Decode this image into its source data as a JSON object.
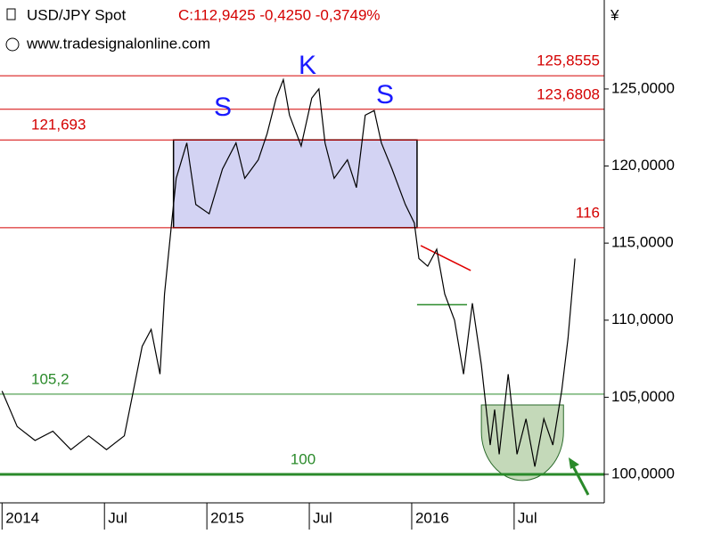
{
  "chart_data": {
    "type": "line",
    "title": "USD/JPY Spot",
    "subtitle": "C:112,9425 -0,4250 -0,3749%",
    "source": "www.tradesignalonline.com",
    "y_axis_label": "¥",
    "series": [
      {
        "name": "USD/JPY",
        "color": "#000000",
        "x": [
          2014.0,
          2014.074,
          2014.161,
          2014.248,
          2014.336,
          2014.423,
          2014.51,
          2014.597,
          2014.641,
          2014.684,
          2014.728,
          2014.771,
          2014.793,
          2014.824,
          2014.85,
          2014.902,
          2014.946,
          2015.011,
          2015.076,
          2015.142,
          2015.185,
          2015.251,
          2015.294,
          2015.338,
          2015.373,
          2015.403,
          2015.46,
          2015.512,
          2015.547,
          2015.577,
          2015.621,
          2015.686,
          2015.73,
          2015.773,
          2015.817,
          2015.852,
          2015.904,
          2015.969,
          2016.013,
          2016.035,
          2016.078,
          2016.122,
          2016.161,
          2016.209,
          2016.253,
          2016.296,
          2016.34,
          2016.383,
          2016.405,
          2016.427,
          2016.471,
          2016.514,
          2016.558,
          2016.601,
          2016.645,
          2016.689,
          2016.732,
          2016.763,
          2016.797
        ],
        "values": [
          105.4,
          103.1,
          102.2,
          102.8,
          101.6,
          102.5,
          101.6,
          102.5,
          105.4,
          108.3,
          109.4,
          106.5,
          111.7,
          115.8,
          119.2,
          121.5,
          117.5,
          116.9,
          119.8,
          121.5,
          119.2,
          120.4,
          122.1,
          124.4,
          125.6,
          123.3,
          121.3,
          124.4,
          125.0,
          121.5,
          119.2,
          120.4,
          118.6,
          123.3,
          123.6,
          121.5,
          119.8,
          117.5,
          116.3,
          114.0,
          113.5,
          114.6,
          111.7,
          110.0,
          106.5,
          111.1,
          107.1,
          101.9,
          104.2,
          101.3,
          106.5,
          101.3,
          103.6,
          100.5,
          103.6,
          101.9,
          105.4,
          108.8,
          114.0
        ]
      }
    ],
    "hlines": [
      {
        "value": 125.8555,
        "label": "125,8555",
        "color": "#d40000",
        "line_width": 1,
        "label_position": "right"
      },
      {
        "value": 123.6808,
        "label": "123,6808",
        "color": "#d40000",
        "line_width": 1,
        "label_position": "right"
      },
      {
        "value": 121.693,
        "label": "121,693",
        "color": "#d40000",
        "line_width": 1,
        "label_position": "left"
      },
      {
        "value": 116,
        "label": "116",
        "color": "#d40000",
        "line_width": 1,
        "label_position": "right"
      },
      {
        "value": 105.2,
        "label": "105,2",
        "color": "#2a8a2a",
        "line_width": 1,
        "label_position": "left"
      },
      {
        "value": 100,
        "label": "100",
        "color": "#2a8a2a",
        "line_width": 3,
        "label_position": "center"
      }
    ],
    "box": {
      "x": [
        2014.837,
        2016.026
      ],
      "y": [
        116,
        121.693
      ],
      "color": "#c8c8f0"
    },
    "cup": {
      "x": [
        2016.34,
        2016.741
      ],
      "y": [
        99.6,
        104.5
      ],
      "color": "#b5cfa8"
    },
    "trend_line": {
      "x": [
        2016.044,
        2016.288
      ],
      "y": [
        114.84,
        113.22
      ],
      "color": "#e00000"
    },
    "support_line": {
      "x": [
        2016.026,
        2016.27
      ],
      "y": [
        111,
        111
      ],
      "color": "#2a8a2a"
    },
    "pattern_labels": [
      "S",
      "K",
      "S"
    ],
    "xlim": [
      2013.99,
      2016.94
    ],
    "ylim": [
      98.15,
      130.77
    ],
    "xticks": [
      {
        "value": 2014,
        "label": "2014"
      },
      {
        "value": 2014.5,
        "label": "Jul"
      },
      {
        "value": 2015,
        "label": "2015"
      },
      {
        "value": 2015.5,
        "label": "Jul"
      },
      {
        "value": 2016,
        "label": "2016"
      },
      {
        "value": 2016.5,
        "label": "Jul"
      }
    ],
    "yticks": [
      {
        "value": 100,
        "label": "100,0000"
      },
      {
        "value": 105,
        "label": "105,0000"
      },
      {
        "value": 110,
        "label": "110,0000"
      },
      {
        "value": 115,
        "label": "115,0000"
      },
      {
        "value": 120,
        "label": "120,0000"
      },
      {
        "value": 125,
        "label": "125,0000"
      }
    ]
  }
}
